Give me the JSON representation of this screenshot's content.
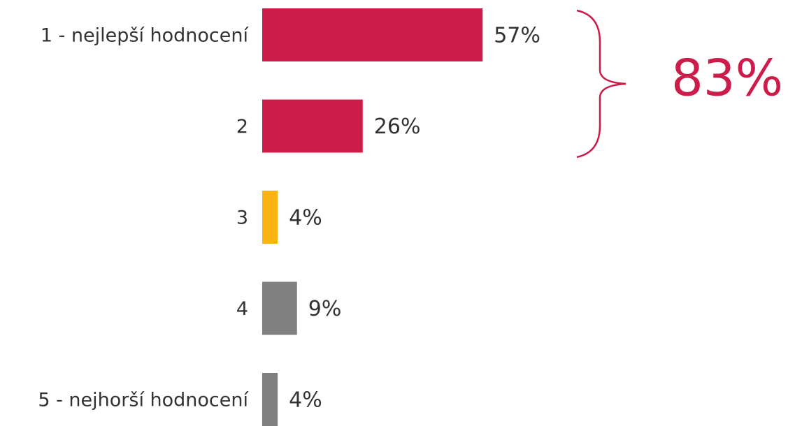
{
  "chart_data": {
    "type": "hbar",
    "categories": [
      "1 - nejlepší hodnocení",
      "2",
      "3",
      "4",
      "5 - nejhorší hodnocení"
    ],
    "values": [
      57,
      26,
      4,
      9,
      4
    ],
    "value_labels": [
      "57%",
      "26%",
      "4%",
      "9%",
      "4%"
    ],
    "colors": [
      "#cc1d4a",
      "#cc1d4a",
      "#fbb314",
      "#808080",
      "#808080"
    ],
    "annotation": "83%"
  }
}
